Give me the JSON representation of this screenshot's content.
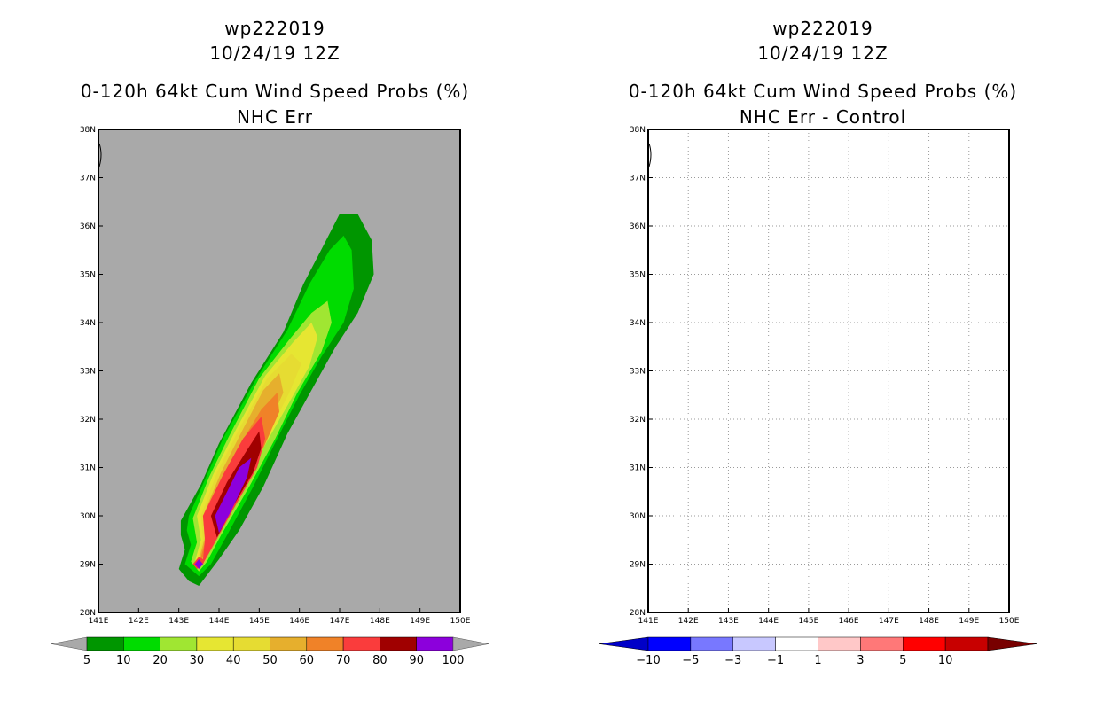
{
  "chart_data": [
    {
      "type": "filled-contour-map",
      "storm_id": "wp222019",
      "datetime": "10/24/19 12Z",
      "title": "0-120h 64kt Cum Wind Speed Probs (%)",
      "subtitle": "NHC Err",
      "xlim": [
        141,
        150
      ],
      "ylim": [
        28,
        38
      ],
      "x_ticks": [
        "141E",
        "142E",
        "143E",
        "144E",
        "145E",
        "146E",
        "147E",
        "148E",
        "149E",
        "150E"
      ],
      "y_ticks": [
        "28N",
        "29N",
        "30N",
        "31N",
        "32N",
        "33N",
        "34N",
        "35N",
        "36N",
        "37N",
        "38N"
      ],
      "grid": false,
      "background_color": "#a9a9a9",
      "colorbar_levels": [
        "5",
        "10",
        "20",
        "30",
        "40",
        "50",
        "60",
        "70",
        "80",
        "90",
        "100"
      ],
      "colorbar_colors": [
        "#009600",
        "#00dc00",
        "#a0e632",
        "#e6e632",
        "#e6dc32",
        "#e6af2d",
        "#f08228",
        "#fa3c3c",
        "#a00000",
        "#8c00dc"
      ],
      "contours": [
        {
          "level": 5,
          "points": [
            [
              143.5,
              28.55
            ],
            [
              143.25,
              28.65
            ],
            [
              143.0,
              28.9
            ],
            [
              143.15,
              29.3
            ],
            [
              143.05,
              29.6
            ],
            [
              143.05,
              29.9
            ],
            [
              143.55,
              30.65
            ],
            [
              144.0,
              31.5
            ],
            [
              144.8,
              32.75
            ],
            [
              145.6,
              33.8
            ],
            [
              146.1,
              34.8
            ],
            [
              146.6,
              35.6
            ],
            [
              147.0,
              36.25
            ],
            [
              147.45,
              36.25
            ],
            [
              147.8,
              35.7
            ],
            [
              147.85,
              35.0
            ],
            [
              147.45,
              34.2
            ],
            [
              146.9,
              33.5
            ],
            [
              146.3,
              32.6
            ],
            [
              145.7,
              31.7
            ],
            [
              145.1,
              30.6
            ],
            [
              144.5,
              29.7
            ],
            [
              144.0,
              29.1
            ]
          ]
        },
        {
          "level": 10,
          "points": [
            [
              143.5,
              28.75
            ],
            [
              143.15,
              29.0
            ],
            [
              143.3,
              29.4
            ],
            [
              143.2,
              29.7
            ],
            [
              143.25,
              30.0
            ],
            [
              143.65,
              30.75
            ],
            [
              144.1,
              31.6
            ],
            [
              144.9,
              32.8
            ],
            [
              145.7,
              33.85
            ],
            [
              146.25,
              34.8
            ],
            [
              146.75,
              35.5
            ],
            [
              147.1,
              35.8
            ],
            [
              147.3,
              35.5
            ],
            [
              147.35,
              34.7
            ],
            [
              147.1,
              34.0
            ],
            [
              146.55,
              33.3
            ],
            [
              146.0,
              32.5
            ],
            [
              145.45,
              31.6
            ],
            [
              144.85,
              30.6
            ],
            [
              144.2,
              29.6
            ],
            [
              143.8,
              29.0
            ]
          ]
        },
        {
          "level": 20,
          "points": [
            [
              143.5,
              28.85
            ],
            [
              143.3,
              29.05
            ],
            [
              143.45,
              29.45
            ],
            [
              143.35,
              29.95
            ],
            [
              143.75,
              30.8
            ],
            [
              144.25,
              31.65
            ],
            [
              145.0,
              32.85
            ],
            [
              145.75,
              33.65
            ],
            [
              146.3,
              34.2
            ],
            [
              146.7,
              34.45
            ],
            [
              146.8,
              34.0
            ],
            [
              146.55,
              33.4
            ],
            [
              145.95,
              32.55
            ],
            [
              145.4,
              31.6
            ],
            [
              144.75,
              30.6
            ],
            [
              144.05,
              29.6
            ],
            [
              143.7,
              29.05
            ]
          ]
        },
        {
          "level": 30,
          "points": [
            [
              143.5,
              28.9
            ],
            [
              143.4,
              29.05
            ],
            [
              143.55,
              29.5
            ],
            [
              143.45,
              30.0
            ],
            [
              143.85,
              30.85
            ],
            [
              144.4,
              31.75
            ],
            [
              145.15,
              32.9
            ],
            [
              145.85,
              33.6
            ],
            [
              146.3,
              34.0
            ],
            [
              146.45,
              33.7
            ],
            [
              146.25,
              33.1
            ],
            [
              145.75,
              32.35
            ],
            [
              145.2,
              31.55
            ],
            [
              144.6,
              30.6
            ],
            [
              143.95,
              29.6
            ],
            [
              143.65,
              29.05
            ]
          ]
        },
        {
          "level": 40,
          "points": [
            [
              143.5,
              28.92
            ],
            [
              143.45,
              29.05
            ],
            [
              143.6,
              29.5
            ],
            [
              143.55,
              30.0
            ],
            [
              143.95,
              30.9
            ],
            [
              144.5,
              31.8
            ],
            [
              145.2,
              32.85
            ],
            [
              145.8,
              33.35
            ],
            [
              146.05,
              33.15
            ],
            [
              145.75,
              32.55
            ],
            [
              145.2,
              31.65
            ],
            [
              144.55,
              30.65
            ],
            [
              143.9,
              29.6
            ],
            [
              143.6,
              29.05
            ]
          ]
        },
        {
          "level": 50,
          "points": [
            [
              143.5,
              28.95
            ],
            [
              143.5,
              29.1
            ],
            [
              143.65,
              29.55
            ],
            [
              143.6,
              30.0
            ],
            [
              144.05,
              30.9
            ],
            [
              144.6,
              31.8
            ],
            [
              145.1,
              32.6
            ],
            [
              145.5,
              32.95
            ],
            [
              145.6,
              32.55
            ],
            [
              145.15,
              31.7
            ],
            [
              144.55,
              30.7
            ],
            [
              143.9,
              29.65
            ],
            [
              143.6,
              29.1
            ]
          ]
        },
        {
          "level": 60,
          "points": [
            [
              143.5,
              28.97
            ],
            [
              143.55,
              29.15
            ],
            [
              143.7,
              29.6
            ],
            [
              143.65,
              30.0
            ],
            [
              144.1,
              30.85
            ],
            [
              144.65,
              31.65
            ],
            [
              145.05,
              32.2
            ],
            [
              145.45,
              32.55
            ],
            [
              145.5,
              32.15
            ],
            [
              145.1,
              31.4
            ],
            [
              144.55,
              30.6
            ],
            [
              143.9,
              29.7
            ],
            [
              143.6,
              29.15
            ]
          ]
        },
        {
          "level": 70,
          "points": [
            [
              143.45,
              28.9
            ],
            [
              143.35,
              29.0
            ],
            [
              143.5,
              29.15
            ],
            [
              143.6,
              29.1
            ],
            [
              143.65,
              29.5
            ],
            [
              143.6,
              30.0
            ],
            [
              144.1,
              30.85
            ],
            [
              144.6,
              31.6
            ],
            [
              145.05,
              32.05
            ],
            [
              145.15,
              31.6
            ],
            [
              144.95,
              31.0
            ],
            [
              144.4,
              30.2
            ],
            [
              144.0,
              29.6
            ],
            [
              143.6,
              29.0
            ]
          ]
        },
        {
          "level": 80,
          "points": [
            [
              143.8,
              30.0
            ],
            [
              144.2,
              30.7
            ],
            [
              144.65,
              31.3
            ],
            [
              145.0,
              31.75
            ],
            [
              145.05,
              31.4
            ],
            [
              144.85,
              30.9
            ],
            [
              144.35,
              30.2
            ],
            [
              143.95,
              29.55
            ]
          ]
        },
        {
          "level": 90,
          "points": [
            [
              143.4,
              29.0
            ],
            [
              143.5,
              29.1
            ],
            [
              143.6,
              29.0
            ],
            [
              143.5,
              28.9
            ]
          ]
        },
        {
          "level": 90,
          "points": [
            [
              143.9,
              30.0
            ],
            [
              144.2,
              30.5
            ],
            [
              144.5,
              31.0
            ],
            [
              144.8,
              31.2
            ],
            [
              144.7,
              30.8
            ],
            [
              144.3,
              30.1
            ],
            [
              144.0,
              29.65
            ]
          ]
        }
      ]
    },
    {
      "type": "filled-contour-map",
      "storm_id": "wp222019",
      "datetime": "10/24/19 12Z",
      "title": "0-120h 64kt Cum Wind Speed Probs (%)",
      "subtitle": "NHC Err - Control",
      "xlim": [
        141,
        150
      ],
      "ylim": [
        28,
        38
      ],
      "x_ticks": [
        "141E",
        "142E",
        "143E",
        "144E",
        "145E",
        "146E",
        "147E",
        "148E",
        "149E",
        "150E"
      ],
      "y_ticks": [
        "28N",
        "29N",
        "30N",
        "31N",
        "32N",
        "33N",
        "34N",
        "35N",
        "36N",
        "37N",
        "38N"
      ],
      "grid": true,
      "background_color": "#ffffff",
      "colorbar_levels": [
        "-10",
        "-5",
        "-3",
        "-1",
        "1",
        "3",
        "5",
        "10"
      ],
      "colorbar_colors": [
        "#0000c8",
        "#0000ff",
        "#7878ff",
        "#c8c8ff",
        "#ffffff",
        "#ffc8c8",
        "#ff7878",
        "#ff0000",
        "#c80000",
        "#780000"
      ],
      "contours": []
    }
  ]
}
